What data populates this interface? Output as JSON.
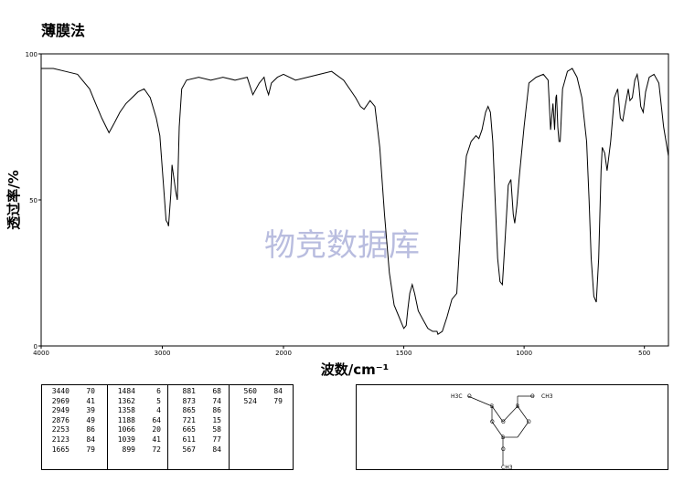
{
  "title": "薄膜法",
  "watermark": "物竞数据库",
  "chart_data": {
    "type": "line",
    "xlabel": "波数/cm⁻¹",
    "ylabel": "透过率/%",
    "xlim": [
      4000,
      400
    ],
    "ylim": [
      0,
      100
    ],
    "x_ticks": [
      "4000",
      "3000",
      "2000",
      "1500",
      "1000",
      "500"
    ],
    "y_ticks": [
      "0",
      "50",
      "100"
    ],
    "grid": false,
    "series": [
      {
        "x": [
          4000,
          3900,
          3800,
          3700,
          3600,
          3550,
          3500,
          3440,
          3400,
          3350,
          3300,
          3250,
          3200,
          3150,
          3100,
          3050,
          3020,
          2990,
          2969,
          2955,
          2949,
          2930,
          2920,
          2900,
          2890,
          2876,
          2860,
          2840,
          2800,
          2700,
          2600,
          2500,
          2400,
          2300,
          2253,
          2200,
          2160,
          2140,
          2123,
          2100,
          2050,
          2000,
          1950,
          1900,
          1850,
          1800,
          1750,
          1700,
          1680,
          1665,
          1640,
          1620,
          1600,
          1580,
          1560,
          1540,
          1520,
          1510,
          1500,
          1490,
          1484,
          1475,
          1465,
          1455,
          1440,
          1420,
          1400,
          1380,
          1362,
          1358,
          1340,
          1320,
          1300,
          1280,
          1260,
          1240,
          1220,
          1200,
          1188,
          1175,
          1160,
          1150,
          1140,
          1130,
          1120,
          1110,
          1100,
          1090,
          1080,
          1066,
          1055,
          1045,
          1039,
          1030,
          1020,
          1000,
          980,
          950,
          920,
          900,
          890,
          880,
          873,
          868,
          865,
          860,
          855,
          850,
          840,
          820,
          800,
          780,
          760,
          740,
          730,
          721,
          710,
          700,
          690,
          680,
          675,
          665,
          655,
          640,
          625,
          611,
          600,
          590,
          580,
          567,
          560,
          550,
          540,
          530,
          524,
          515,
          505,
          495,
          480,
          460,
          440,
          420,
          400
        ],
        "y": [
          95,
          95,
          94,
          93,
          88,
          83,
          78,
          73,
          76,
          80,
          83,
          85,
          87,
          88,
          85,
          78,
          72,
          55,
          43,
          42,
          41,
          52,
          62,
          56,
          53,
          50,
          75,
          88,
          91,
          92,
          91,
          92,
          91,
          92,
          86,
          90,
          92,
          88,
          86,
          90,
          92,
          93,
          91,
          92,
          93,
          94,
          91,
          85,
          82,
          81,
          84,
          82,
          68,
          45,
          25,
          14,
          10,
          8,
          6,
          7,
          12,
          18,
          21,
          18,
          12,
          9,
          6,
          5,
          5,
          4,
          5,
          10,
          16,
          18,
          45,
          65,
          70,
          72,
          71,
          74,
          80,
          82,
          80,
          70,
          50,
          30,
          22,
          21,
          35,
          55,
          57,
          45,
          42,
          48,
          58,
          75,
          90,
          92,
          93,
          91,
          74,
          83,
          74,
          85,
          86,
          75,
          70,
          70,
          88,
          94,
          95,
          92,
          85,
          70,
          50,
          30,
          17,
          15,
          30,
          60,
          68,
          66,
          60,
          70,
          85,
          88,
          78,
          77,
          82,
          88,
          84,
          85,
          91,
          93,
          90,
          82,
          80,
          87,
          92,
          93,
          90,
          75,
          65
        ]
      }
    ]
  },
  "peak_table": {
    "columns": [
      [
        [
          "3440",
          "70"
        ],
        [
          "2969",
          "41"
        ],
        [
          "2949",
          "39"
        ],
        [
          "2876",
          "49"
        ],
        [
          "2253",
          "86"
        ],
        [
          "2123",
          "84"
        ],
        [
          "1665",
          "79"
        ]
      ],
      [
        [
          "1484",
          "6"
        ],
        [
          "1362",
          "5"
        ],
        [
          "1358",
          "4"
        ],
        [
          "1188",
          "64"
        ],
        [
          "1066",
          "20"
        ],
        [
          "1039",
          "41"
        ],
        [
          "899",
          "72"
        ]
      ],
      [
        [
          "881",
          "68"
        ],
        [
          "873",
          "74"
        ],
        [
          "865",
          "86"
        ],
        [
          "721",
          "15"
        ],
        [
          "665",
          "58"
        ],
        [
          "611",
          "77"
        ],
        [
          "567",
          "84"
        ]
      ],
      [
        [
          "560",
          "84"
        ],
        [
          "524",
          "79"
        ]
      ]
    ]
  },
  "structure": {
    "labels": [
      "H3C",
      "O",
      "B",
      "O",
      "B",
      "O",
      "CH3",
      "O",
      "O",
      "B",
      "O",
      "CH3"
    ]
  }
}
